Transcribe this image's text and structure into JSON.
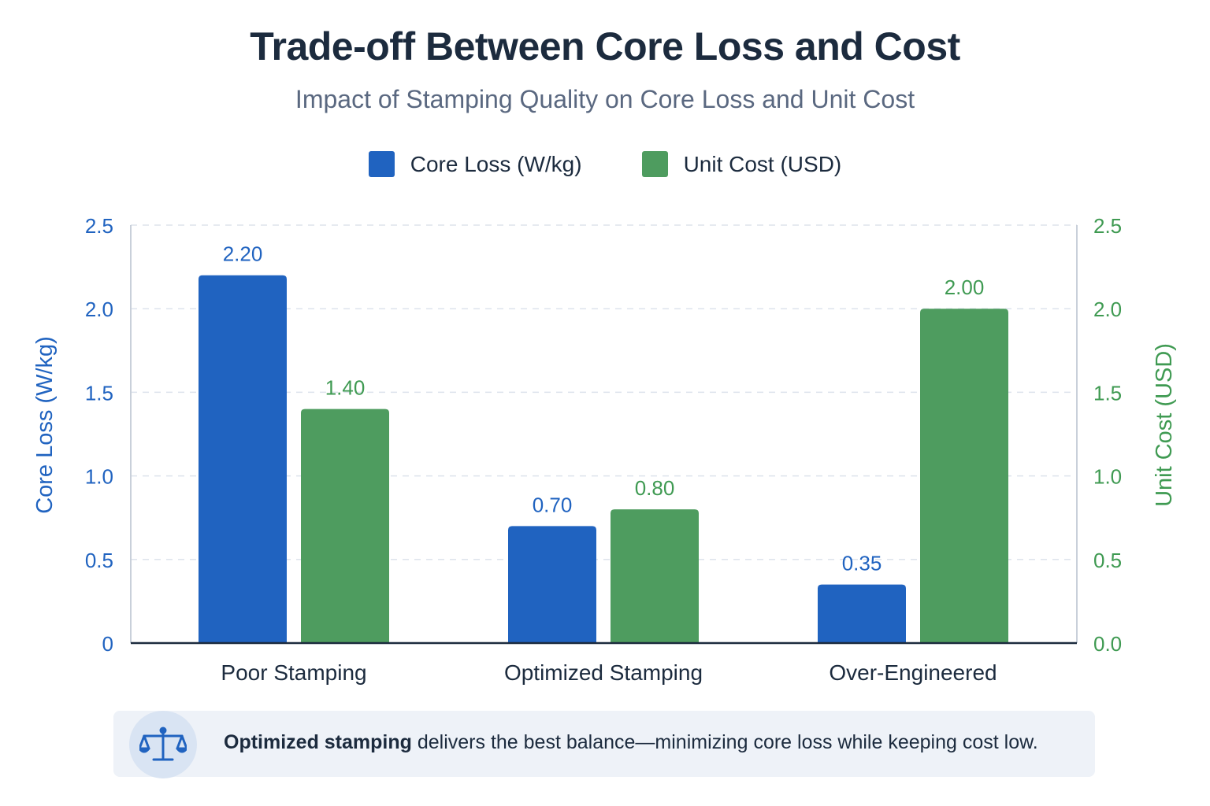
{
  "chart_data": {
    "type": "bar",
    "title": "Trade-off Between Core Loss and Cost",
    "subtitle": "Impact of Stamping Quality on Core Loss and Unit Cost",
    "categories": [
      "Poor Stamping",
      "Optimized Stamping",
      "Over-Engineered"
    ],
    "series": [
      {
        "name": "Core Loss (W/kg)",
        "axis": "left",
        "color": "#2063c0",
        "values": [
          2.2,
          0.7,
          0.35
        ],
        "labels": [
          "2.20",
          "0.70",
          "0.35"
        ]
      },
      {
        "name": "Unit Cost (USD)",
        "axis": "right",
        "color": "#4e9c5f",
        "values": [
          1.4,
          0.8,
          2.0
        ],
        "labels": [
          "1.40",
          "0.80",
          "2.00"
        ]
      }
    ],
    "ylabel": "Core Loss (W/kg)",
    "y2label": "Unit Cost (USD)",
    "ylim": [
      0,
      2.5
    ],
    "y2lim": [
      0,
      2.5
    ],
    "yticks": [
      "0",
      "0.5",
      "1.0",
      "1.5",
      "2.0",
      "2.5"
    ],
    "y2ticks": [
      "0.0",
      "0.5",
      "1.0",
      "1.5",
      "2.0",
      "2.5"
    ],
    "grid": true,
    "legend_position": "top-center"
  },
  "callout": {
    "icon": "balance-scale-icon",
    "bold_text": "Optimized stamping",
    "text": " delivers the best balance—minimizing core loss while keeping cost low."
  },
  "colors": {
    "title": "#1c2b3e",
    "left_axis": "#2063c0",
    "right_axis": "#3f9a52",
    "grid": "#dde3ec"
  }
}
